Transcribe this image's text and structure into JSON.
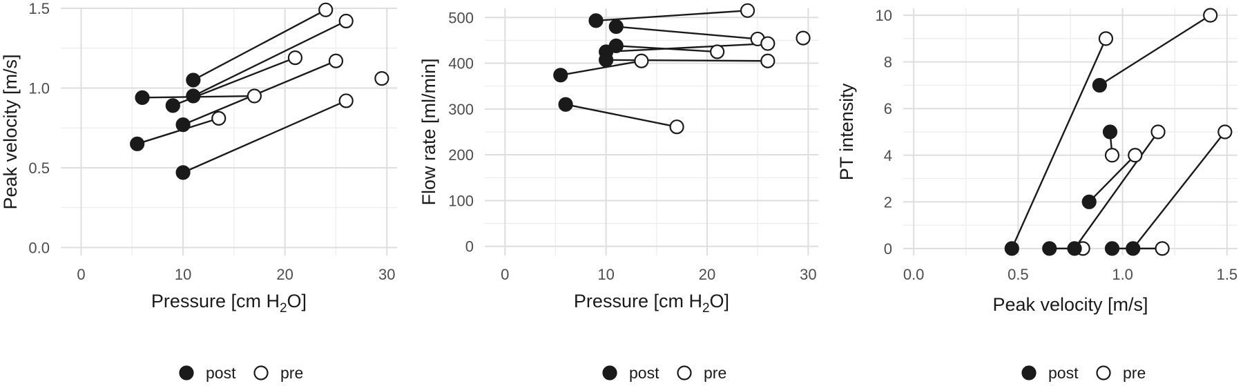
{
  "chart_data": [
    {
      "type": "scatter",
      "subtype": "paired-dot",
      "xlabel": "Pressure [cm H2O]",
      "xlabel_parts": {
        "main": "Pressure [cm H",
        "sub": "2",
        "tail": "O]"
      },
      "ylabel": "Peak velocity [m/s]",
      "xlim": [
        -2,
        31
      ],
      "ylim": [
        -0.05,
        1.5
      ],
      "xticks": [
        0,
        10,
        20,
        30
      ],
      "xtick_labels": [
        "0",
        "10",
        "20",
        "30"
      ],
      "yticks": [
        0.0,
        0.5,
        1.0,
        1.5
      ],
      "ytick_labels": [
        "0.0",
        "0.5",
        "1.0",
        "1.5"
      ],
      "grid": true,
      "legend": {
        "position": "bottom",
        "entries": [
          "post",
          "pre"
        ]
      },
      "pairs": [
        {
          "post": [
            5.5,
            0.65
          ],
          "pre": [
            13.5,
            0.81
          ]
        },
        {
          "post": [
            10,
            0.47
          ],
          "pre": [
            26,
            0.92
          ]
        },
        {
          "post": [
            10,
            0.77
          ],
          "pre": [
            25,
            1.17
          ]
        },
        {
          "post": [
            6,
            0.94
          ],
          "pre": [
            17,
            0.95
          ]
        },
        {
          "post": [
            9,
            0.89
          ],
          "pre": [
            21,
            1.19
          ]
        },
        {
          "post": [
            11,
            0.95
          ],
          "pre": [
            26,
            1.42
          ]
        },
        {
          "post": [
            11,
            1.05
          ],
          "pre": [
            24,
            1.49
          ]
        }
      ],
      "unpaired": [
        {
          "group": "pre",
          "point": [
            29.5,
            1.06
          ]
        }
      ]
    },
    {
      "type": "scatter",
      "subtype": "paired-dot",
      "xlabel": "Pressure [cm H2O]",
      "xlabel_parts": {
        "main": "Pressure [cm H",
        "sub": "2",
        "tail": "O]"
      },
      "ylabel": "Flow rate [ml/min]",
      "xlim": [
        -2,
        31
      ],
      "ylim": [
        -20,
        520
      ],
      "xticks": [
        0,
        10,
        20,
        30
      ],
      "xtick_labels": [
        "0",
        "10",
        "20",
        "30"
      ],
      "yticks": [
        0,
        100,
        200,
        300,
        400,
        500
      ],
      "ytick_labels": [
        "0",
        "100",
        "200",
        "300",
        "400",
        "500"
      ],
      "grid": true,
      "legend": {
        "position": "bottom",
        "entries": [
          "post",
          "pre"
        ]
      },
      "pairs": [
        {
          "post": [
            9,
            493
          ],
          "pre": [
            24,
            515
          ]
        },
        {
          "post": [
            11,
            480
          ],
          "pre": [
            25,
            453
          ]
        },
        {
          "post": [
            11,
            438
          ],
          "pre": [
            21,
            425
          ]
        },
        {
          "post": [
            10,
            425
          ],
          "pre": [
            26,
            443
          ]
        },
        {
          "post": [
            10,
            407
          ],
          "pre": [
            26,
            405
          ]
        },
        {
          "post": [
            5.5,
            374
          ],
          "pre": [
            13.5,
            405
          ]
        },
        {
          "post": [
            6,
            310
          ],
          "pre": [
            17,
            261
          ]
        }
      ],
      "unpaired": [
        {
          "group": "pre",
          "point": [
            29.5,
            455
          ]
        }
      ]
    },
    {
      "type": "scatter",
      "subtype": "paired-dot",
      "xlabel": "Peak velocity [m/s]",
      "ylabel": "PT intensity",
      "xlim": [
        -0.05,
        1.55
      ],
      "ylim": [
        -0.3,
        10.3
      ],
      "xticks": [
        0.0,
        0.5,
        1.0,
        1.5
      ],
      "xtick_labels": [
        "0.0",
        "0.5",
        "1.0",
        "1.5"
      ],
      "yticks": [
        0,
        2,
        4,
        6,
        8,
        10
      ],
      "ytick_labels": [
        "0",
        "2",
        "4",
        "6",
        "8",
        "10"
      ],
      "grid": true,
      "legend": {
        "position": "bottom",
        "entries": [
          "post",
          "pre"
        ]
      },
      "pairs": [
        {
          "post": [
            0.47,
            0
          ],
          "pre": [
            0.92,
            9
          ]
        },
        {
          "post": [
            0.89,
            7
          ],
          "pre": [
            1.42,
            10
          ]
        },
        {
          "post": [
            0.94,
            5
          ],
          "pre": [
            0.95,
            4
          ]
        },
        {
          "post": [
            0.84,
            2
          ],
          "pre": [
            1.06,
            4
          ]
        },
        {
          "post": [
            0.65,
            0
          ],
          "pre": [
            0.81,
            0
          ]
        },
        {
          "post": [
            0.77,
            0
          ],
          "pre": [
            1.17,
            5
          ]
        },
        {
          "post": [
            1.05,
            0
          ],
          "pre": [
            1.49,
            5
          ]
        },
        {
          "post": [
            0.95,
            0
          ],
          "pre": [
            1.19,
            0
          ]
        }
      ],
      "unpaired": []
    }
  ]
}
